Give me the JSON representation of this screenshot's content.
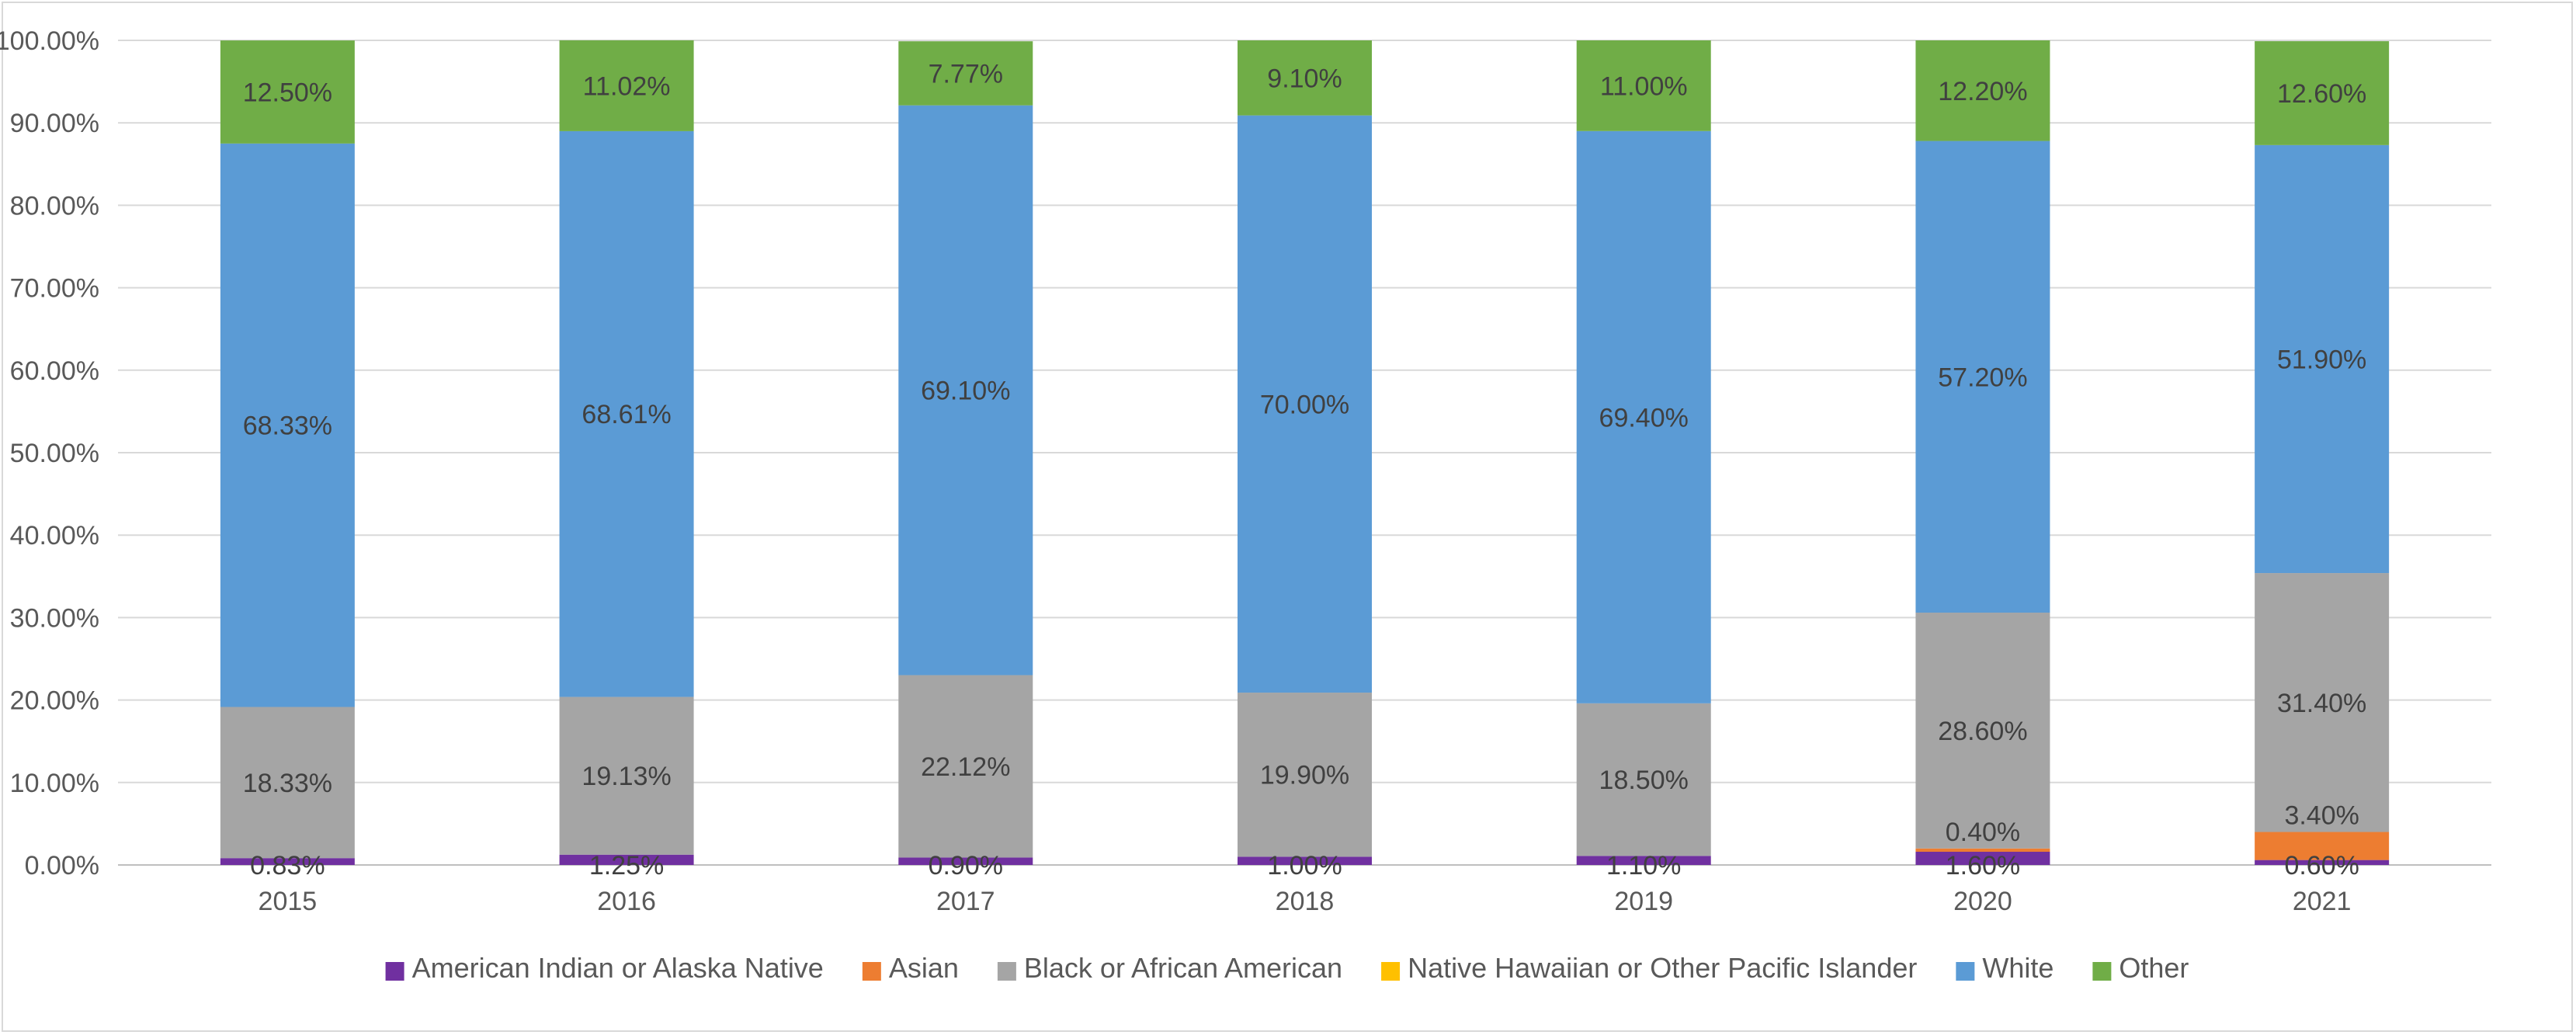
{
  "chart_data": {
    "type": "bar",
    "stacked": true,
    "categories": [
      "2015",
      "2016",
      "2017",
      "2018",
      "2019",
      "2020",
      "2021"
    ],
    "ylim": [
      0,
      100
    ],
    "y_ticks": [
      "0.00%",
      "10.00%",
      "20.00%",
      "30.00%",
      "40.00%",
      "50.00%",
      "60.00%",
      "70.00%",
      "80.00%",
      "90.00%",
      "100.00%"
    ],
    "grid": true,
    "legend_position": "bottom",
    "series": [
      {
        "name": "American Indian or Alaska Native",
        "color": "#7030a0",
        "values": [
          0.83,
          1.25,
          0.9,
          1.0,
          1.1,
          1.6,
          0.6
        ],
        "labels": [
          "0.83%",
          "1.25%",
          "0.90%",
          "1.00%",
          "1.10%",
          "1.60%",
          "0.60%"
        ]
      },
      {
        "name": "Asian",
        "color": "#ed7d31",
        "values": [
          0,
          0,
          0,
          0,
          0,
          0.4,
          3.4
        ],
        "labels": [
          "",
          "",
          "",
          "",
          "",
          "0.40%",
          "3.40%"
        ]
      },
      {
        "name": "Black or African American",
        "color": "#a5a5a5",
        "values": [
          18.33,
          19.13,
          22.12,
          19.9,
          18.5,
          28.6,
          31.4
        ],
        "labels": [
          "18.33%",
          "19.13%",
          "22.12%",
          "19.90%",
          "18.50%",
          "28.60%",
          "31.40%"
        ]
      },
      {
        "name": "Native Hawaiian or Other Pacific Islander",
        "color": "#ffc000",
        "values": [
          0,
          0,
          0,
          0,
          0,
          0,
          0
        ],
        "labels": [
          "",
          "",
          "",
          "",
          "",
          "",
          ""
        ]
      },
      {
        "name": "White",
        "color": "#5b9bd5",
        "values": [
          68.33,
          68.61,
          69.1,
          70.0,
          69.4,
          57.2,
          51.9
        ],
        "labels": [
          "68.33%",
          "68.61%",
          "69.10%",
          "70.00%",
          "69.40%",
          "57.20%",
          "51.90%"
        ]
      },
      {
        "name": "Other",
        "color": "#70ad47",
        "values": [
          12.5,
          11.02,
          7.77,
          9.1,
          11.0,
          12.2,
          12.6
        ],
        "labels": [
          "12.50%",
          "11.02%",
          "7.77%",
          "9.10%",
          "11.00%",
          "12.20%",
          "12.60%"
        ]
      }
    ]
  }
}
